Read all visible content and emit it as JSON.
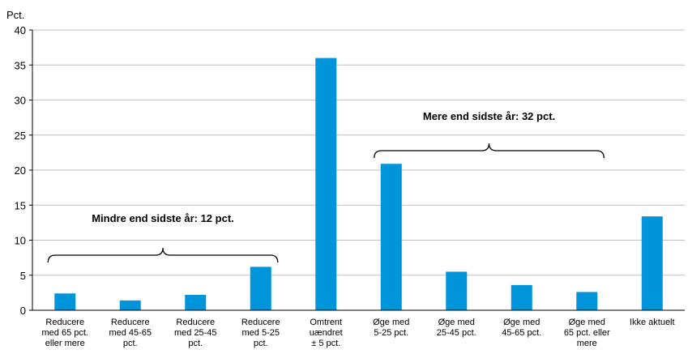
{
  "chart_data": {
    "type": "bar",
    "ylabel": "Pct.",
    "ylim": [
      0,
      40
    ],
    "yticks": [
      0,
      5,
      10,
      15,
      20,
      25,
      30,
      35,
      40
    ],
    "grid": true,
    "bar_color": "#0095DA",
    "categories": [
      [
        "Reducere",
        "med 65 pct.",
        "eller mere"
      ],
      [
        "Reducere",
        "med 45-65",
        "pct."
      ],
      [
        "Reducere",
        "med 25-45",
        "pct."
      ],
      [
        "Reducere",
        "med 5-25",
        "pct."
      ],
      [
        "Omtrent",
        "uændret",
        "± 5 pct."
      ],
      [
        "Øge med",
        "5-25 pct."
      ],
      [
        "Øge med",
        "25-45 pct."
      ],
      [
        "Øge med",
        "45-65 pct."
      ],
      [
        "Øge med",
        "65 pct. eller",
        "mere"
      ],
      [
        "Ikke aktuelt"
      ]
    ],
    "values": [
      2.4,
      1.4,
      2.2,
      6.2,
      36.0,
      20.9,
      5.5,
      3.6,
      2.6,
      13.4
    ],
    "annotations": [
      {
        "text": "Mindre end sidste år: 12 pct.",
        "from": 0,
        "to": 3
      },
      {
        "text": "Mere end sidste år: 32 pct.",
        "from": 5,
        "to": 8
      }
    ]
  }
}
